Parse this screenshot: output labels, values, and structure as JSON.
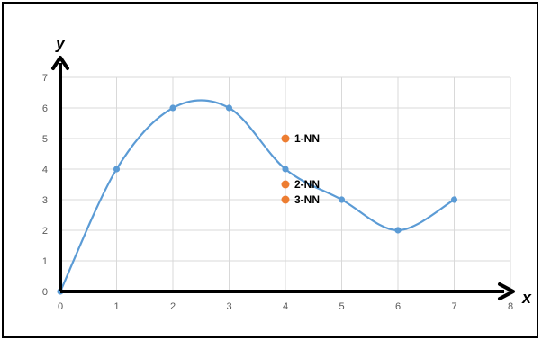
{
  "chart_data": {
    "type": "line",
    "title": "",
    "xlabel": "x",
    "ylabel": "y",
    "xlim": [
      0,
      8
    ],
    "ylim": [
      0,
      7
    ],
    "x_ticks": [
      "0",
      "1",
      "2",
      "3",
      "4",
      "5",
      "6",
      "7",
      "8"
    ],
    "y_ticks": [
      "0",
      "1",
      "2",
      "3",
      "4",
      "5",
      "6",
      "7"
    ],
    "grid": true,
    "smooth": true,
    "series": [
      {
        "color": "#5b9bd5",
        "points": [
          {
            "x": 0,
            "y": 0
          },
          {
            "x": 1,
            "y": 4
          },
          {
            "x": 2,
            "y": 6
          },
          {
            "x": 3,
            "y": 6
          },
          {
            "x": 4,
            "y": 4
          },
          {
            "x": 5,
            "y": 3
          },
          {
            "x": 6,
            "y": 2
          },
          {
            "x": 7,
            "y": 3
          }
        ]
      }
    ],
    "annotations": [
      {
        "label": "1-NN",
        "x": 4,
        "y": 5,
        "color": "#ed7d31"
      },
      {
        "label": "2-NN",
        "x": 4,
        "y": 3.5,
        "color": "#ed7d31"
      },
      {
        "label": "3-NN",
        "x": 4,
        "y": 3,
        "color": "#ed7d31"
      }
    ]
  }
}
